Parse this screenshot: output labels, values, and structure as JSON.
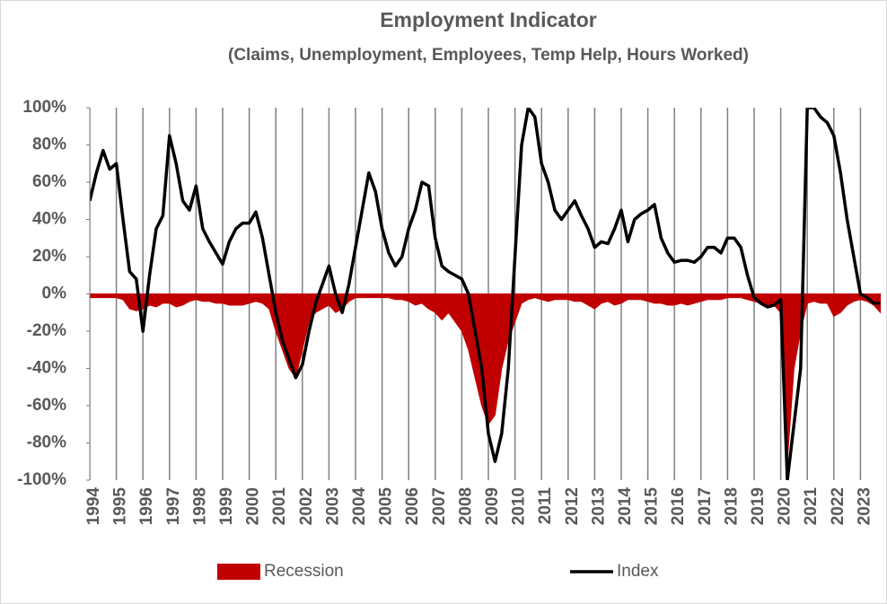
{
  "chart_data": {
    "type": "line",
    "title": "Employment Indicator",
    "subtitle": "(Claims, Unemployment, Employees, Temp Help, Hours Worked)",
    "x": [
      1994.0,
      1994.25,
      1994.5,
      1994.75,
      1995.0,
      1995.25,
      1995.5,
      1995.75,
      1996.0,
      1996.25,
      1996.5,
      1996.75,
      1997.0,
      1997.25,
      1997.5,
      1997.75,
      1998.0,
      1998.25,
      1998.5,
      1998.75,
      1999.0,
      1999.25,
      1999.5,
      1999.75,
      2000.0,
      2000.25,
      2000.5,
      2000.75,
      2001.0,
      2001.25,
      2001.5,
      2001.75,
      2002.0,
      2002.25,
      2002.5,
      2002.75,
      2003.0,
      2003.25,
      2003.5,
      2003.75,
      2004.0,
      2004.25,
      2004.5,
      2004.75,
      2005.0,
      2005.25,
      2005.5,
      2005.75,
      2006.0,
      2006.25,
      2006.5,
      2006.75,
      2007.0,
      2007.25,
      2007.5,
      2007.75,
      2008.0,
      2008.25,
      2008.5,
      2008.75,
      2009.0,
      2009.25,
      2009.5,
      2009.75,
      2010.0,
      2010.25,
      2010.5,
      2010.75,
      2011.0,
      2011.25,
      2011.5,
      2011.75,
      2012.0,
      2012.25,
      2012.5,
      2012.75,
      2013.0,
      2013.25,
      2013.5,
      2013.75,
      2014.0,
      2014.25,
      2014.5,
      2014.75,
      2015.0,
      2015.25,
      2015.5,
      2015.75,
      2016.0,
      2016.25,
      2016.5,
      2016.75,
      2017.0,
      2017.25,
      2017.5,
      2017.75,
      2018.0,
      2018.25,
      2018.5,
      2018.75,
      2019.0,
      2019.25,
      2019.5,
      2019.75,
      2020.0,
      2020.25,
      2020.5,
      2020.75,
      2021.0,
      2021.25,
      2021.5,
      2021.75,
      2022.0,
      2022.25,
      2022.5,
      2022.75,
      2023.0,
      2023.25,
      2023.5,
      2023.75
    ],
    "series": [
      {
        "name": "Recession",
        "color": "#c00000",
        "kind": "area",
        "values": [
          -2,
          -2,
          -2,
          -2,
          -2,
          -3,
          -8,
          -9,
          -8,
          -6,
          -7,
          -5,
          -5,
          -7,
          -6,
          -4,
          -3,
          -4,
          -4,
          -5,
          -5,
          -6,
          -6,
          -6,
          -5,
          -4,
          -5,
          -8,
          -20,
          -30,
          -40,
          -45,
          -30,
          -15,
          -10,
          -8,
          -6,
          -10,
          -8,
          -4,
          -2,
          -2,
          -2,
          -2,
          -2,
          -2,
          -3,
          -3,
          -4,
          -6,
          -5,
          -8,
          -10,
          -14,
          -10,
          -15,
          -20,
          -30,
          -45,
          -60,
          -70,
          -65,
          -40,
          -25,
          -15,
          -5,
          -3,
          -2,
          -3,
          -4,
          -3,
          -3,
          -3,
          -4,
          -4,
          -6,
          -8,
          -5,
          -4,
          -6,
          -5,
          -3,
          -3,
          -3,
          -4,
          -5,
          -5,
          -6,
          -6,
          -5,
          -6,
          -5,
          -4,
          -3,
          -3,
          -3,
          -2,
          -2,
          -2,
          -3,
          -4,
          -5,
          -6,
          -6,
          -10,
          -90,
          -40,
          -20,
          -5,
          -4,
          -5,
          -5,
          -12,
          -10,
          -6,
          -4,
          -3,
          -4,
          -6,
          -10
        ]
      },
      {
        "name": "Index",
        "color": "#000000",
        "kind": "line",
        "values": [
          50,
          65,
          77,
          67,
          70,
          40,
          12,
          8,
          -20,
          10,
          35,
          42,
          85,
          70,
          50,
          45,
          58,
          35,
          28,
          22,
          16,
          28,
          35,
          38,
          38,
          44,
          30,
          10,
          -10,
          -25,
          -35,
          -45,
          -38,
          -20,
          -5,
          5,
          15,
          0,
          -10,
          5,
          25,
          45,
          65,
          55,
          35,
          22,
          15,
          20,
          35,
          45,
          60,
          58,
          30,
          15,
          12,
          10,
          8,
          0,
          -20,
          -40,
          -75,
          -90,
          -75,
          -40,
          20,
          80,
          100,
          95,
          70,
          60,
          45,
          40,
          45,
          50,
          42,
          35,
          25,
          28,
          27,
          35,
          45,
          28,
          40,
          43,
          45,
          48,
          30,
          22,
          17,
          18,
          18,
          17,
          20,
          25,
          25,
          22,
          30,
          30,
          25,
          10,
          -2,
          -5,
          -7,
          -6,
          -3,
          -100,
          -70,
          -40,
          100,
          100,
          95,
          92,
          85,
          65,
          40,
          20,
          0,
          -2,
          -5,
          -5
        ]
      }
    ],
    "xlim": [
      1994,
      2024
    ],
    "xticks": [
      1994,
      1995,
      1996,
      1997,
      1998,
      1999,
      2000,
      2001,
      2002,
      2003,
      2004,
      2005,
      2006,
      2007,
      2008,
      2009,
      2010,
      2011,
      2012,
      2013,
      2014,
      2015,
      2016,
      2017,
      2018,
      2019,
      2020,
      2021,
      2022,
      2023
    ],
    "ylim": [
      -100,
      100
    ],
    "yticks": [
      {
        "value": -100,
        "label": "-100%"
      },
      {
        "value": -80,
        "label": "-80%"
      },
      {
        "value": -60,
        "label": "-60%"
      },
      {
        "value": -40,
        "label": "-40%"
      },
      {
        "value": -20,
        "label": "-20%"
      },
      {
        "value": 0,
        "label": "0%"
      },
      {
        "value": 20,
        "label": "20%"
      },
      {
        "value": 40,
        "label": "40%"
      },
      {
        "value": 60,
        "label": "60%"
      },
      {
        "value": 80,
        "label": "80%"
      },
      {
        "value": 100,
        "label": "100%"
      }
    ],
    "xgrid": true,
    "legend": "bottom"
  }
}
